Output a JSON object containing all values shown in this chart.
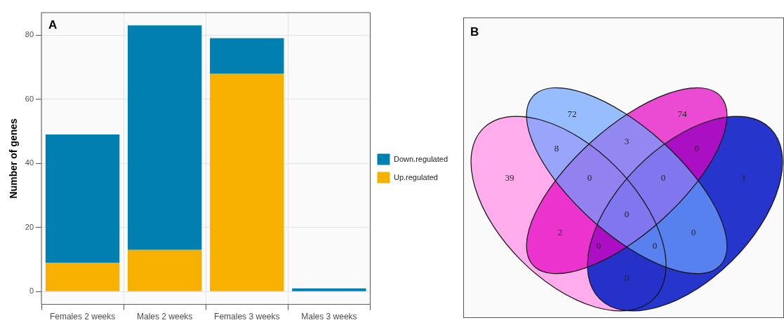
{
  "chart_data": [
    {
      "type": "bar",
      "title": "A",
      "ylabel": "Number of genes",
      "categories": [
        "Females 2 weeks",
        "Males 2 weeks",
        "Females 3 weeks",
        "Males 3 weeks"
      ],
      "stacked": true,
      "series": [
        {
          "name": "Up.regulated",
          "color": "#f5b000",
          "values": [
            9,
            13,
            68,
            0
          ]
        },
        {
          "name": "Down.regulated",
          "color": "#007fb1",
          "values": [
            40,
            70,
            11,
            1
          ]
        }
      ],
      "ylim": [
        -4,
        87
      ],
      "yticks": [
        0,
        20,
        40,
        60,
        80
      ],
      "grid": true,
      "legend": "right"
    },
    {
      "type": "other",
      "title": "B",
      "annotations": [
        "72",
        "74",
        "3",
        "8",
        "0",
        "39",
        "0",
        "0",
        "1",
        "0",
        "2",
        "0",
        "0",
        "0",
        "0"
      ]
    }
  ]
}
